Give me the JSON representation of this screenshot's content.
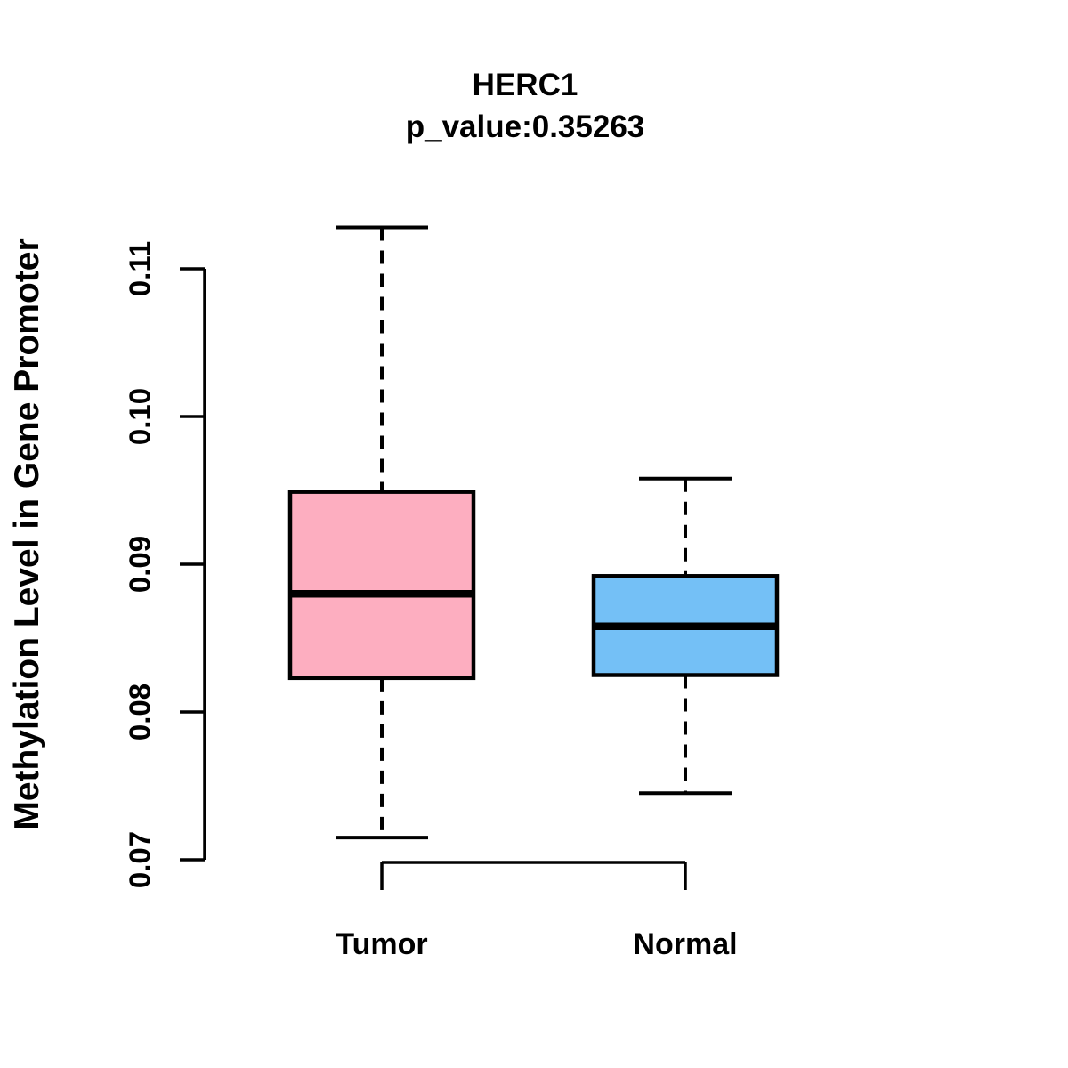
{
  "title": "HERC1",
  "subtitle": "p_value:0.35263",
  "y_axis": {
    "label": "Methylation Level in Gene Promoter",
    "tick_labels": [
      "0.07",
      "0.08",
      "0.09",
      "0.10",
      "0.11"
    ]
  },
  "x_axis": {
    "categories": [
      "Tumor",
      "Normal"
    ]
  },
  "colors": {
    "ink": "#000000",
    "background": "#FFFFFF",
    "tumor_fill": "#FDAEC0",
    "normal_fill": "#74C0F6"
  },
  "chart_data": {
    "type": "boxplot",
    "title": "HERC1",
    "subtitle": "p_value:0.35263",
    "p_value": 0.35263,
    "gene": "HERC1",
    "xlabel": "",
    "ylabel": "Methylation Level in Gene Promoter",
    "ylim": [
      0.068,
      0.115
    ],
    "yticks": [
      0.07,
      0.08,
      0.09,
      0.1,
      0.11
    ],
    "categories": [
      "Tumor",
      "Normal"
    ],
    "grid": false,
    "legend": "none",
    "series": [
      {
        "name": "Tumor",
        "fill_color": "#FDAEC0",
        "whisker_low": 0.0715,
        "q1": 0.0823,
        "median": 0.088,
        "q3": 0.0949,
        "whisker_high": 0.1128
      },
      {
        "name": "Normal",
        "fill_color": "#74C0F6",
        "whisker_low": 0.0745,
        "q1": 0.0825,
        "median": 0.0858,
        "q3": 0.0892,
        "whisker_high": 0.0958
      }
    ]
  }
}
